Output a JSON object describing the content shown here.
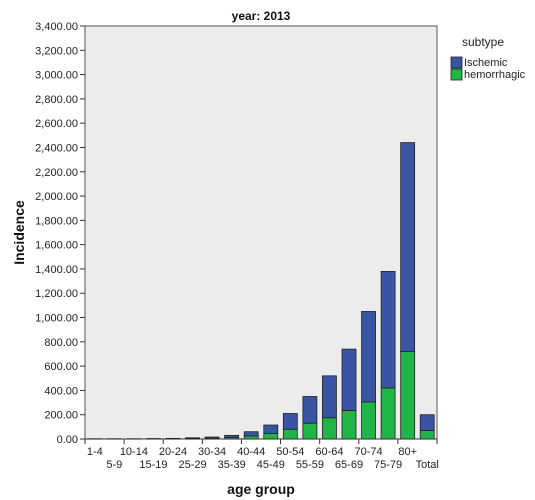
{
  "chart_data": {
    "type": "bar",
    "stacked": true,
    "title": "year: 2013",
    "xlabel": "age group",
    "ylabel": "Incidence",
    "ylim": [
      0,
      3400
    ],
    "yticks": [
      "0.00",
      "200.00",
      "400.00",
      "600.00",
      "800.00",
      "1,000.00",
      "1,200.00",
      "1,400.00",
      "1,600.00",
      "1,800.00",
      "2,000.00",
      "2,200.00",
      "2,400.00",
      "2,600.00",
      "2,800.00",
      "3,000.00",
      "3,200.00",
      "3,400.00"
    ],
    "ytick_values": [
      0,
      200,
      400,
      600,
      800,
      1000,
      1200,
      1400,
      1600,
      1800,
      2000,
      2200,
      2400,
      2600,
      2800,
      3000,
      3200,
      3400
    ],
    "categories": [
      "1-4",
      "5-9",
      "10-14",
      "15-19",
      "20-24",
      "25-29",
      "30-34",
      "35-39",
      "40-44",
      "45-49",
      "50-54",
      "55-59",
      "60-64",
      "65-69",
      "70-74",
      "75-79",
      "80+",
      "Total"
    ],
    "legend_title": "subtype",
    "legend_position": "right",
    "series": [
      {
        "name": "hemorrhagic",
        "color": "#21b548",
        "values": [
          1,
          1,
          1,
          2,
          3,
          5,
          8,
          12,
          25,
          45,
          80,
          130,
          175,
          235,
          305,
          420,
          720,
          70
        ]
      },
      {
        "name": "Ischemic",
        "color": "#3a54a4",
        "values": [
          1,
          1,
          1,
          1,
          2,
          5,
          8,
          18,
          35,
          70,
          130,
          220,
          345,
          505,
          745,
          960,
          1720,
          130
        ]
      }
    ],
    "grid": false,
    "plot_background": "#ececec"
  }
}
